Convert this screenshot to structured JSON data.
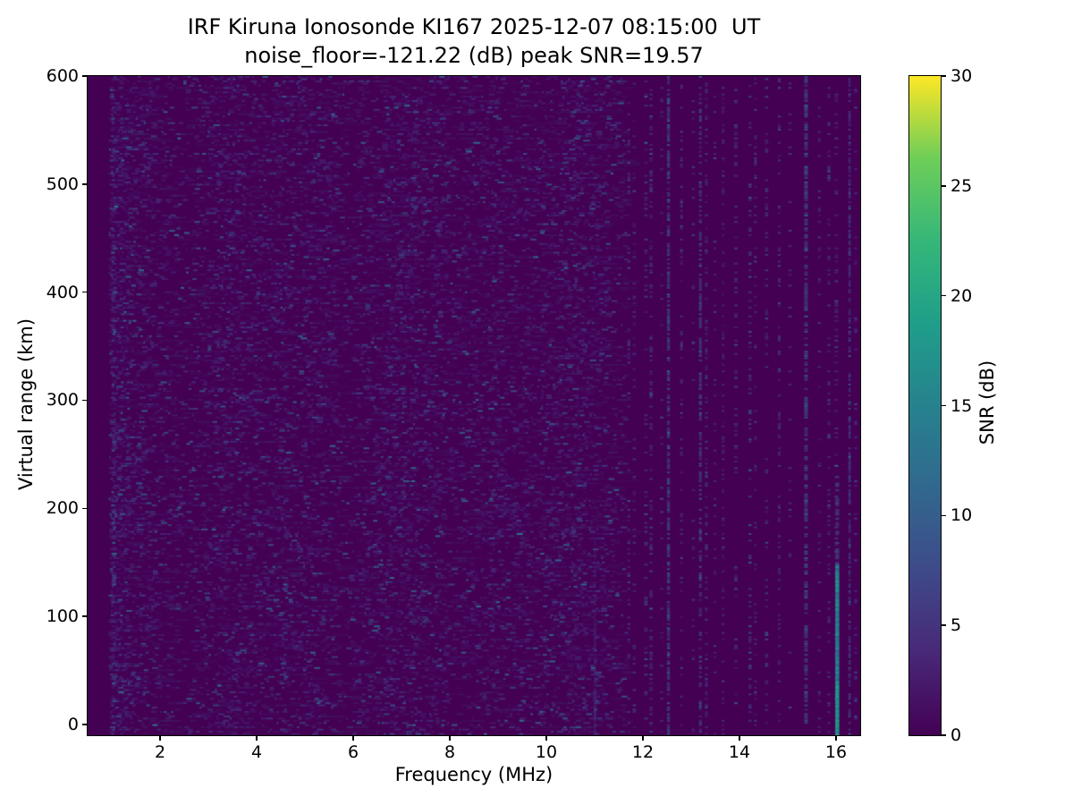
{
  "title": {
    "line1": "IRF Kiruna Ionosonde KI167 2025-12-07 08:15:00  UT",
    "line2": "noise_floor=-121.22 (dB) peak SNR=19.57"
  },
  "colors": {
    "figure_background": "#ffffff",
    "text": "#000000",
    "axis_spine": "#000000",
    "heatmap_background": "#440154",
    "noise_speckle_faint": "#482878",
    "noise_speckle_bright": "#31688e",
    "strong_echo_peak": "#22a884"
  },
  "chart_data": {
    "type": "heatmap",
    "title": "IRF Kiruna Ionosonde KI167 2025-12-07 08:15:00  UT",
    "subtitle": "noise_floor=-121.22 (dB) peak SNR=19.57",
    "station": "IRF Kiruna Ionosonde KI167",
    "timestamp_ut": "2025-12-07 08:15:00 UT",
    "noise_floor_db": -121.22,
    "peak_snr_db": 19.57,
    "xlabel": "Frequency (MHz)",
    "ylabel": "Virtual range (km)",
    "xlim": [
      0.5,
      16.5
    ],
    "ylim": [
      -10,
      600
    ],
    "xticks": [
      2,
      4,
      6,
      8,
      10,
      12,
      14,
      16
    ],
    "yticks": [
      0,
      100,
      200,
      300,
      400,
      500,
      600
    ],
    "grid": false,
    "legend_position": "none",
    "colorbar": {
      "label": "SNR (dB)",
      "ticks": [
        0,
        5,
        10,
        15,
        20,
        25,
        30
      ],
      "range": [
        0,
        30
      ],
      "colormap": "viridis",
      "stops": [
        {
          "t": 0.0,
          "color": "#440154"
        },
        {
          "t": 0.125,
          "color": "#482878"
        },
        {
          "t": 0.25,
          "color": "#3e4a89"
        },
        {
          "t": 0.375,
          "color": "#31688e"
        },
        {
          "t": 0.5,
          "color": "#26828e"
        },
        {
          "t": 0.625,
          "color": "#1f9e89"
        },
        {
          "t": 0.75,
          "color": "#35b779"
        },
        {
          "t": 0.875,
          "color": "#6ece58"
        },
        {
          "t": 1.0,
          "color": "#fde725"
        }
      ]
    },
    "features": {
      "blanked_band": {
        "f_min_mhz": 0.5,
        "f_max_mhz": 0.93,
        "snr_db": 0
      },
      "dense_noise_region": {
        "f_min_mhz": 0.93,
        "f_max_mhz": 11.62,
        "snr_db_typical": [
          0,
          8
        ],
        "pattern": "random short horizontal dashes over full height"
      },
      "left_edge_column": {
        "freq_mhz": 0.98,
        "snr_db_typical": [
          2,
          10
        ]
      },
      "rfi_stripe_region": {
        "f_min_mhz": 11.68,
        "f_max_mhz": 16.45,
        "pattern": "discrete vertical dashed columns on dark background",
        "snr_db_typical": [
          0,
          7
        ]
      },
      "faint_streak": {
        "freq_mhz": 10.98,
        "km_min": -10,
        "km_max": 170,
        "snr_db_typical": [
          2,
          5
        ]
      },
      "strong_echo": {
        "freq_mhz": 16.0,
        "km_min": -8,
        "km_max": 230,
        "peak_snr_db": 19.57,
        "brightest_km_range": [
          -8,
          40
        ],
        "description": "continuous teal-green vertical line, fading above ~150 km"
      }
    },
    "texture": {
      "seed": 20251207,
      "rows": 300,
      "dense_density": 0.5,
      "haze_count": 2200,
      "stripe_gap_mhz": [
        0.09,
        0.33
      ],
      "stripe_density": [
        0.1,
        0.7
      ]
    }
  }
}
